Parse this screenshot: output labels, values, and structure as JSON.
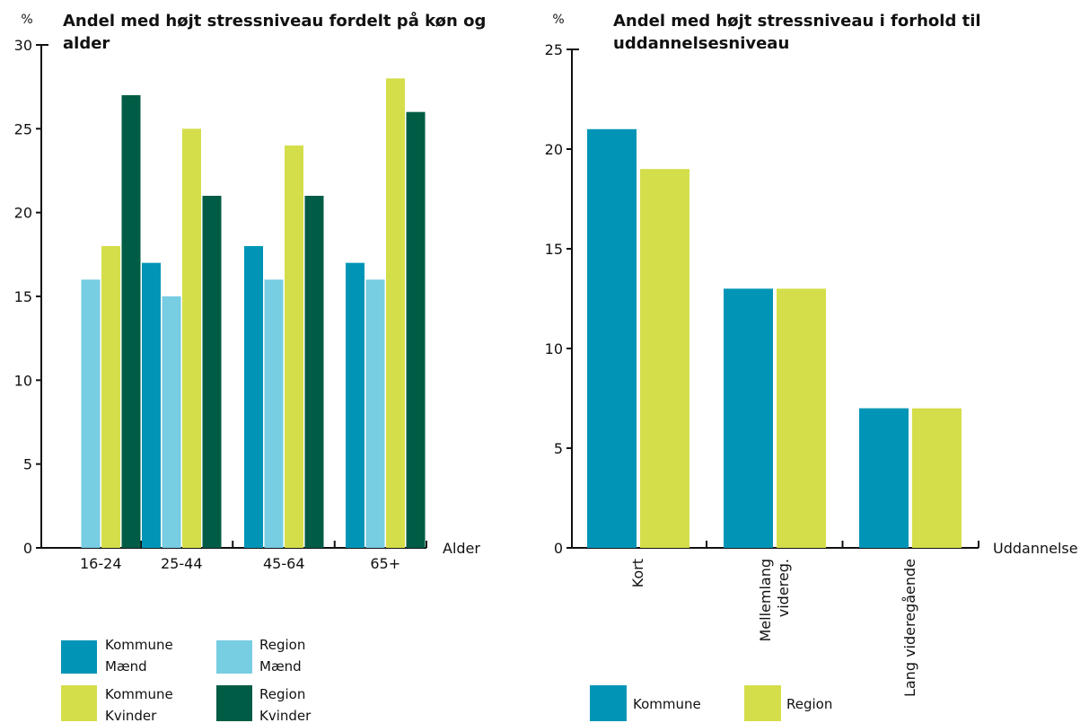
{
  "colors": {
    "kommune_maend": "#0095b6",
    "region_maend": "#77cde2",
    "kommune_kvinder": "#d4de4a",
    "region_kvinder": "#005c45"
  },
  "chart_data": [
    {
      "type": "bar",
      "unit": "%",
      "title_lines": [
        "Andel med højt stressniveau fordelt på køn og",
        "alder"
      ],
      "xlabel": "Alder",
      "ylabel": "",
      "ylim": [
        0,
        30
      ],
      "yticks": [
        0,
        5,
        10,
        15,
        20,
        25,
        30
      ],
      "grid": false,
      "legend_position": "bottom",
      "categories": [
        "16-24",
        "25-44",
        "45-64",
        "65+"
      ],
      "series": [
        {
          "name_lines": [
            "Kommune",
            "Mænd"
          ],
          "color": "#0095b6",
          "values": [
            null,
            17,
            18,
            17
          ]
        },
        {
          "name_lines": [
            "Region",
            "Mænd"
          ],
          "color": "#77cde2",
          "values": [
            16,
            15,
            16,
            16
          ]
        },
        {
          "name_lines": [
            "Kommune",
            "Kvinder"
          ],
          "color": "#d4de4a",
          "values": [
            18,
            25,
            24,
            28
          ]
        },
        {
          "name_lines": [
            "Region",
            "Kvinder"
          ],
          "color": "#005c45",
          "values": [
            27,
            21,
            21,
            26
          ]
        }
      ]
    },
    {
      "type": "bar",
      "unit": "%",
      "title_lines": [
        "Andel med højt stressniveau i forhold til",
        "uddannelsesniveau"
      ],
      "xlabel": "Uddannelse",
      "ylabel": "",
      "ylim": [
        0,
        25
      ],
      "yticks": [
        0,
        5,
        10,
        15,
        20,
        25
      ],
      "grid": false,
      "legend_position": "bottom",
      "categories": [
        [
          "Kort"
        ],
        [
          "Mellemlang",
          "videreg."
        ],
        [
          "Lang videregående"
        ]
      ],
      "series": [
        {
          "name_lines": [
            "Kommune"
          ],
          "color": "#0095b6",
          "values": [
            21,
            13,
            7
          ]
        },
        {
          "name_lines": [
            "Region"
          ],
          "color": "#d4de4a",
          "values": [
            19,
            13,
            7
          ]
        }
      ]
    }
  ]
}
